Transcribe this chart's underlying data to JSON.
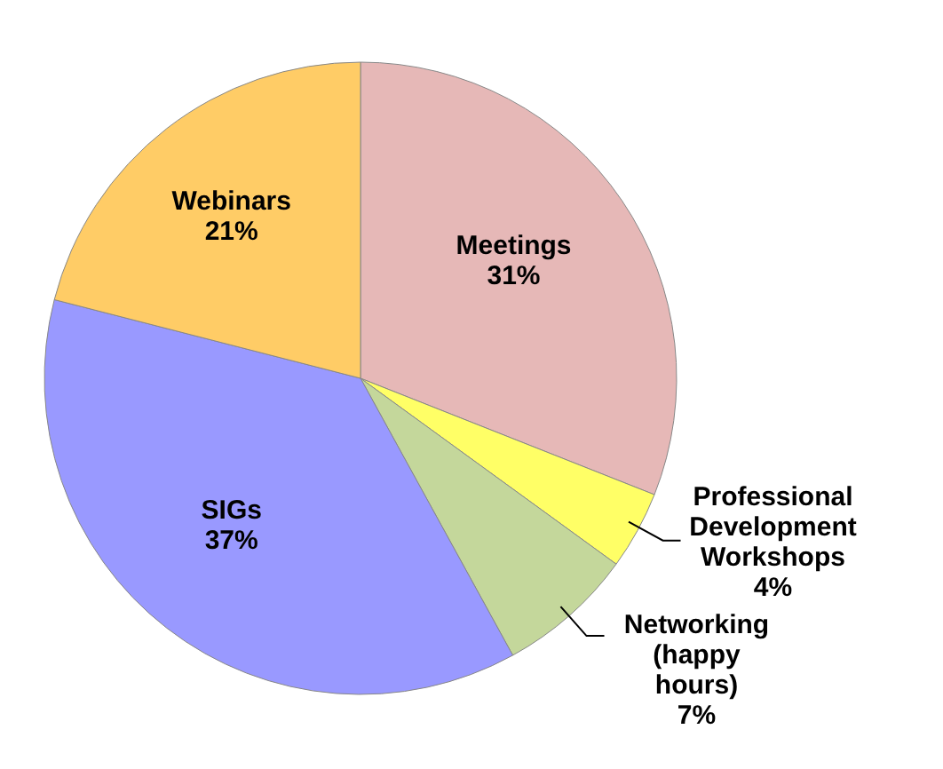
{
  "chart_data": {
    "type": "pie",
    "categories": [
      "Meetings",
      "Professional Development Workshops",
      "Networking (happy hours)",
      "SIGs",
      "Webinars"
    ],
    "values": [
      31,
      4,
      7,
      37,
      21
    ],
    "value_labels": [
      "31%",
      "4%",
      "7%",
      "37%",
      "21%"
    ],
    "colors": [
      "#e6b8b7",
      "#ffff66",
      "#c4d79b",
      "#9999ff",
      "#ffcc66"
    ]
  }
}
